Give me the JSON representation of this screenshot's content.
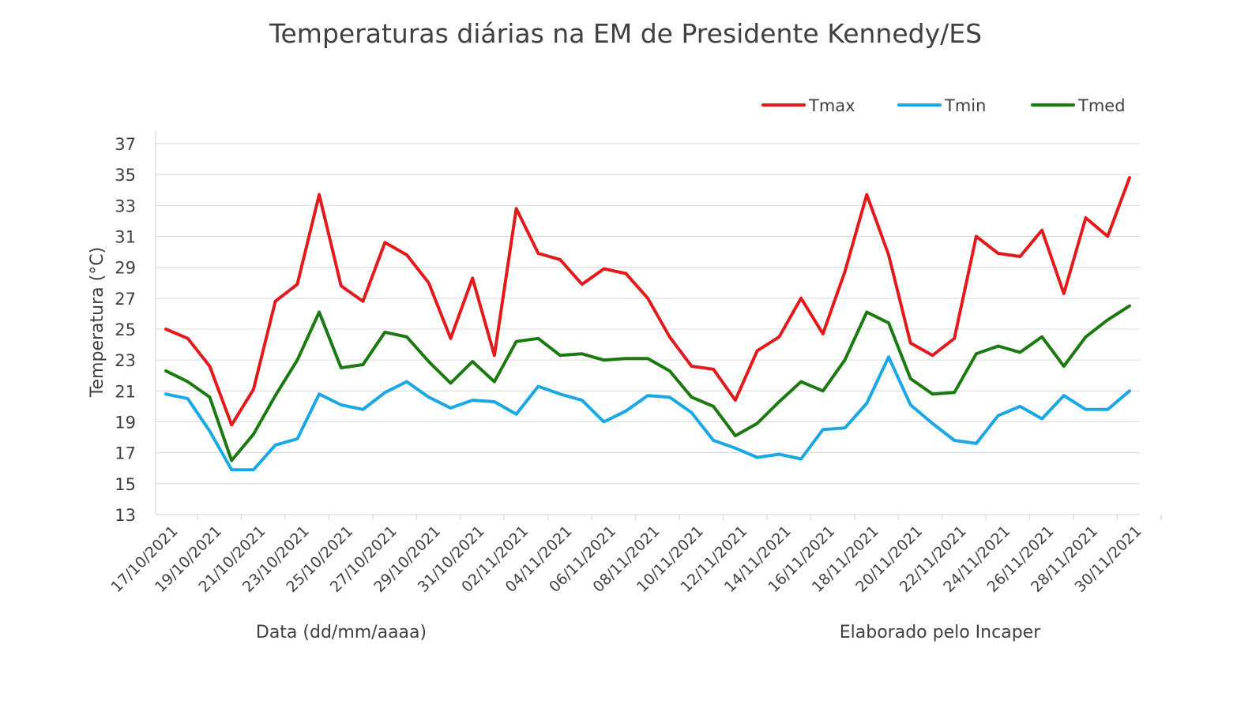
{
  "chart_data": {
    "type": "line",
    "title": "Temperaturas diárias na EM de Presidente Kennedy/ES",
    "xlabel": "Data (dd/mm/aaaa)",
    "ylabel": "Temperatura (°C)",
    "note": "Elaborado pelo Incaper",
    "ylim": [
      13,
      38
    ],
    "yticks": [
      13,
      15,
      17,
      19,
      21,
      23,
      25,
      27,
      29,
      31,
      33,
      35,
      37
    ],
    "grid": true,
    "legend_position": "top-right",
    "x": [
      "17/10/2021",
      "18/10/2021",
      "19/10/2021",
      "20/10/2021",
      "21/10/2021",
      "22/10/2021",
      "23/10/2021",
      "24/10/2021",
      "25/10/2021",
      "26/10/2021",
      "27/10/2021",
      "28/10/2021",
      "29/10/2021",
      "30/10/2021",
      "31/10/2021",
      "01/11/2021",
      "02/11/2021",
      "03/11/2021",
      "04/11/2021",
      "05/11/2021",
      "06/11/2021",
      "07/11/2021",
      "08/11/2021",
      "09/11/2021",
      "10/11/2021",
      "11/11/2021",
      "12/11/2021",
      "13/11/2021",
      "14/11/2021",
      "15/11/2021",
      "16/11/2021",
      "17/11/2021",
      "18/11/2021",
      "19/11/2021",
      "20/11/2021",
      "21/11/2021",
      "22/11/2021",
      "23/11/2021",
      "24/11/2021",
      "25/11/2021",
      "26/11/2021",
      "27/11/2021",
      "28/11/2021",
      "29/11/2021",
      "30/11/2021"
    ],
    "x_tick_labels": [
      "17/10/2021",
      "19/10/2021",
      "21/10/2021",
      "23/10/2021",
      "25/10/2021",
      "27/10/2021",
      "29/10/2021",
      "31/10/2021",
      "02/11/2021",
      "04/11/2021",
      "06/11/2021",
      "08/11/2021",
      "10/11/2021",
      "12/11/2021",
      "14/11/2021",
      "16/11/2021",
      "18/11/2021",
      "20/11/2021",
      "22/11/2021",
      "24/11/2021",
      "26/11/2021",
      "28/11/2021",
      "30/11/2021"
    ],
    "series": [
      {
        "name": "Tmax",
        "color": "#e31a1c",
        "values": [
          25.0,
          24.4,
          22.6,
          18.8,
          21.1,
          26.8,
          27.9,
          33.7,
          27.8,
          26.8,
          30.6,
          29.8,
          28.0,
          24.4,
          28.3,
          23.3,
          32.8,
          29.9,
          29.5,
          27.9,
          28.9,
          28.6,
          27.0,
          24.5,
          22.6,
          22.4,
          20.4,
          23.6,
          24.5,
          27.0,
          24.7,
          28.7,
          33.7,
          29.8,
          24.1,
          23.3,
          24.4,
          31.0,
          29.9,
          29.7,
          31.4,
          27.3,
          32.2,
          31.0,
          34.8
        ]
      },
      {
        "name": "Tmin",
        "color": "#1aa7e6",
        "values": [
          20.8,
          20.5,
          18.4,
          15.9,
          15.9,
          17.5,
          17.9,
          20.8,
          20.1,
          19.8,
          20.9,
          21.6,
          20.6,
          19.9,
          20.4,
          20.3,
          19.5,
          21.3,
          20.8,
          20.4,
          19.0,
          19.7,
          20.7,
          20.6,
          19.6,
          17.8,
          17.3,
          16.7,
          16.9,
          16.6,
          18.5,
          18.6,
          20.2,
          23.2,
          20.1,
          18.9,
          17.8,
          17.6,
          19.4,
          20.0,
          19.2,
          20.7,
          19.8,
          19.8,
          21.0
        ]
      },
      {
        "name": "Tmed",
        "color": "#1a7a0f",
        "values": [
          22.3,
          21.6,
          20.6,
          16.5,
          18.2,
          20.7,
          23.0,
          26.1,
          22.5,
          22.7,
          24.8,
          24.5,
          22.9,
          21.5,
          22.9,
          21.6,
          24.2,
          24.4,
          23.3,
          23.4,
          23.0,
          23.1,
          23.1,
          22.3,
          20.6,
          20.0,
          18.1,
          18.9,
          20.3,
          21.6,
          21.0,
          23.0,
          26.1,
          25.4,
          21.8,
          20.8,
          20.9,
          23.4,
          23.9,
          23.5,
          24.5,
          22.6,
          24.5,
          25.6,
          26.5
        ]
      }
    ]
  }
}
